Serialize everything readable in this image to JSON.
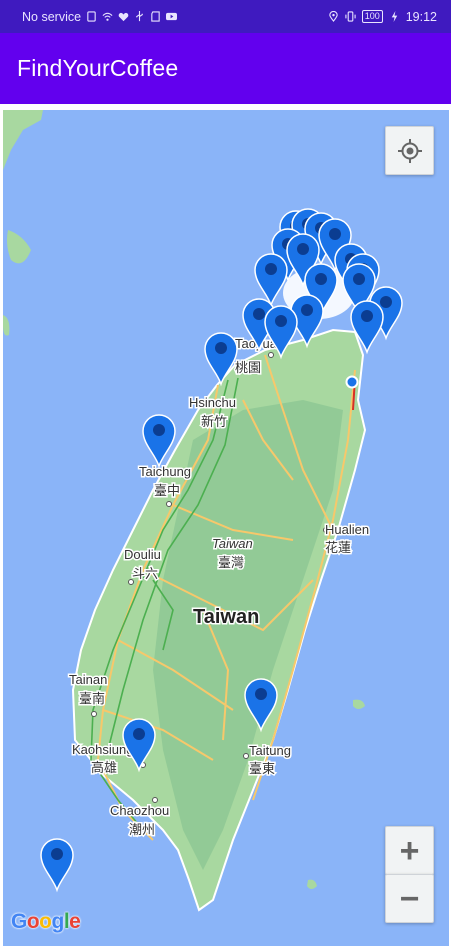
{
  "status_bar": {
    "carrier": "No service",
    "time": "19:12",
    "battery": "100",
    "icons": [
      "sim-icon",
      "wifi-icon",
      "heart-icon",
      "usb-icon",
      "sd-card-icon",
      "youtube-icon",
      "location-icon",
      "vibrate-icon",
      "battery-icon",
      "charging-icon"
    ]
  },
  "app_bar": {
    "title": "FindYourCoffee"
  },
  "map": {
    "colors": {
      "water": "#8ab4f8",
      "land": "#a8d8a0",
      "road": "#f7c86b",
      "highway": "#4caf50",
      "marker": "#1a73e8"
    },
    "labels": [
      {
        "id": "taoyuan",
        "text": "Taoyuan"
      },
      {
        "id": "taoyuan-zh",
        "text": "桃園"
      },
      {
        "id": "hsinchu",
        "text": "Hsinchu"
      },
      {
        "id": "hsinchu-zh",
        "text": "新竹"
      },
      {
        "id": "taichung",
        "text": "Taichung"
      },
      {
        "id": "taichung-zh",
        "text": "臺中"
      },
      {
        "id": "hualien",
        "text": "Hualien"
      },
      {
        "id": "hualien-zh",
        "text": "花蓮"
      },
      {
        "id": "taiwan-it",
        "text": "Taiwan"
      },
      {
        "id": "taiwan-zh",
        "text": "臺灣"
      },
      {
        "id": "douliu",
        "text": "Douliu"
      },
      {
        "id": "douliu-zh",
        "text": "斗六"
      },
      {
        "id": "taiwan-big",
        "text": "Taiwan"
      },
      {
        "id": "tainan",
        "text": "Tainan"
      },
      {
        "id": "tainan-zh",
        "text": "臺南"
      },
      {
        "id": "kaohsiung",
        "text": "Kaohsiung"
      },
      {
        "id": "kaohsiung-zh",
        "text": "高雄"
      },
      {
        "id": "taitung",
        "text": "Taitung"
      },
      {
        "id": "taitung-zh",
        "text": "臺東"
      },
      {
        "id": "chaozhou",
        "text": "Chaozhou"
      },
      {
        "id": "chaozhou-zh",
        "text": "潮州"
      }
    ],
    "controls": {
      "my_location_icon": "crosshair-icon",
      "zoom_in": "+",
      "zoom_out": "−"
    },
    "attribution": {
      "letters": [
        "G",
        "o",
        "o",
        "g",
        "l",
        "e"
      ],
      "colors": [
        "#4285f4",
        "#ea4335",
        "#fbbc05",
        "#4285f4",
        "#34a853",
        "#ea4335"
      ]
    }
  }
}
